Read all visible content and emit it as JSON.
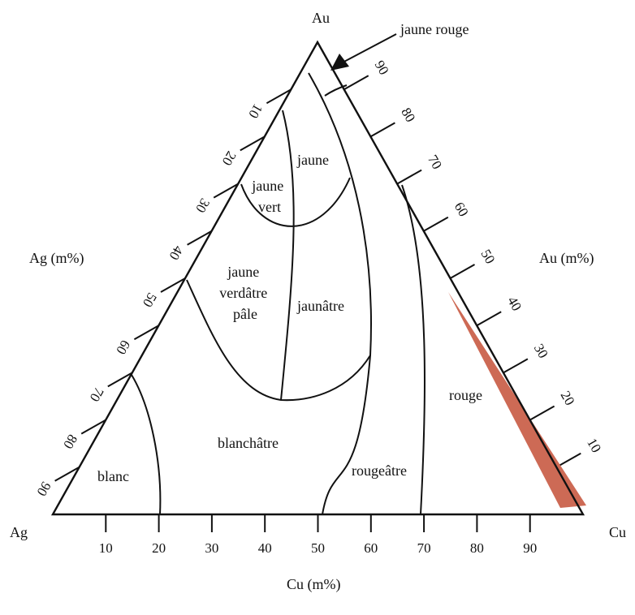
{
  "vertices": {
    "top": "Au",
    "left": "Ag",
    "right": "Cu"
  },
  "axes": {
    "bottom_title": "Cu (m%)",
    "left_title": "Ag (m%)",
    "right_title": "Au (m%)",
    "bottom_ticks": [
      "10",
      "20",
      "30",
      "40",
      "50",
      "60",
      "70",
      "80",
      "90"
    ],
    "left_ticks": [
      "10",
      "20",
      "30",
      "40",
      "50",
      "60",
      "70",
      "80",
      "90"
    ],
    "right_ticks": [
      "90",
      "80",
      "70",
      "60",
      "50",
      "40",
      "30",
      "20",
      "10"
    ]
  },
  "regions": {
    "jaune": "jaune",
    "jaune_vert": [
      "jaune",
      "vert"
    ],
    "jaune_verdatre_pale": [
      "jaune",
      "verdâtre",
      "pâle"
    ],
    "jaunatre": "jaunâtre",
    "blanchatre": "blanchâtre",
    "blanc": "blanc",
    "rougeatre": "rougeâtre",
    "rouge": "rouge"
  },
  "callout": "jaune rouge",
  "colors": {
    "line": "#111111",
    "highlight": "#cd6a55"
  }
}
